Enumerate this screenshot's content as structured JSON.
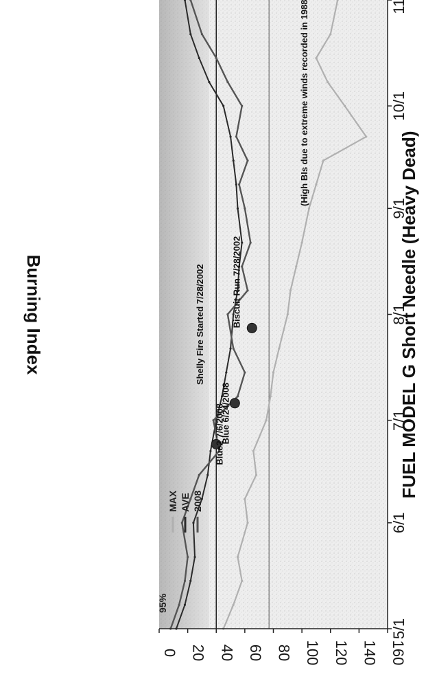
{
  "chart_data": {
    "type": "line",
    "title": "",
    "xlabel": "FUEL MODEL G Short Needle (Heavy Dead)",
    "ylabel": "Burning Index",
    "ylim": [
      0,
      160
    ],
    "yticks": [
      "0",
      "20",
      "40",
      "60",
      "80",
      "100",
      "120",
      "140",
      "160"
    ],
    "xlim": [
      "5/1",
      "11/1"
    ],
    "xticks": [
      "5/1",
      "6/1",
      "7/1",
      "8/1",
      "9/1",
      "10/1",
      "11/1"
    ],
    "grid": false,
    "legend_position": "top-left",
    "legend": [
      "MAX",
      "AVE",
      "2008"
    ],
    "series": [
      {
        "name": "MAX",
        "color": "#b0b0b0",
        "x": [
          "5/1",
          "5/8",
          "5/15",
          "5/22",
          "6/1",
          "6/8",
          "6/15",
          "6/22",
          "7/1",
          "7/8",
          "7/15",
          "7/22",
          "8/1",
          "8/8",
          "8/15",
          "8/22",
          "9/1",
          "9/8",
          "9/15",
          "9/22",
          "10/1",
          "10/8",
          "10/15",
          "10/22",
          "11/1"
        ],
        "values": [
          45,
          52,
          58,
          55,
          62,
          60,
          68,
          66,
          75,
          78,
          80,
          84,
          90,
          92,
          96,
          100,
          105,
          110,
          115,
          145,
          130,
          118,
          110,
          120,
          125
        ]
      },
      {
        "name": "AVE",
        "color": "#2a2a2a",
        "x": [
          "5/1",
          "5/8",
          "5/15",
          "5/22",
          "6/1",
          "6/8",
          "6/15",
          "6/22",
          "7/1",
          "7/8",
          "7/15",
          "7/22",
          "8/1",
          "8/8",
          "8/15",
          "8/22",
          "9/1",
          "9/8",
          "9/15",
          "9/22",
          "10/1",
          "10/8",
          "10/15",
          "10/22",
          "11/1"
        ],
        "values": [
          12,
          18,
          22,
          25,
          24,
          30,
          34,
          36,
          40,
          44,
          47,
          50,
          52,
          55,
          56,
          58,
          55,
          54,
          52,
          50,
          45,
          35,
          28,
          22,
          18
        ]
      },
      {
        "name": "2008",
        "color": "#555555",
        "x": [
          "5/1",
          "5/8",
          "5/15",
          "5/22",
          "6/1",
          "6/8",
          "6/15",
          "6/22",
          "7/1",
          "7/8",
          "7/15",
          "7/22",
          "8/1",
          "8/8",
          "8/15",
          "8/22",
          "9/1",
          "9/8",
          "9/15",
          "9/22",
          "10/1",
          "10/8",
          "10/15",
          "10/22",
          "11/1"
        ],
        "values": [
          8,
          14,
          18,
          20,
          16,
          22,
          28,
          42,
          38,
          55,
          60,
          52,
          48,
          62,
          58,
          64,
          60,
          56,
          62,
          54,
          58,
          48,
          40,
          30,
          22
        ]
      }
    ],
    "threshold": {
      "label": "95%",
      "value": 77
    },
    "low_band": {
      "value": 40
    },
    "events": [
      {
        "label": "Blue 6/24/2008",
        "x": "6/24",
        "y": 40
      },
      {
        "label": "Blue2 7/6/2008",
        "x": "7/6",
        "y": 53
      },
      {
        "label": "Biscuit Run 7/28/2002",
        "x": "7/28",
        "y": 65
      }
    ],
    "annotations": [
      "Shelly Fire Started 7/28/2002",
      "(High BIs due to extreme winds recorded in 1988)"
    ]
  }
}
